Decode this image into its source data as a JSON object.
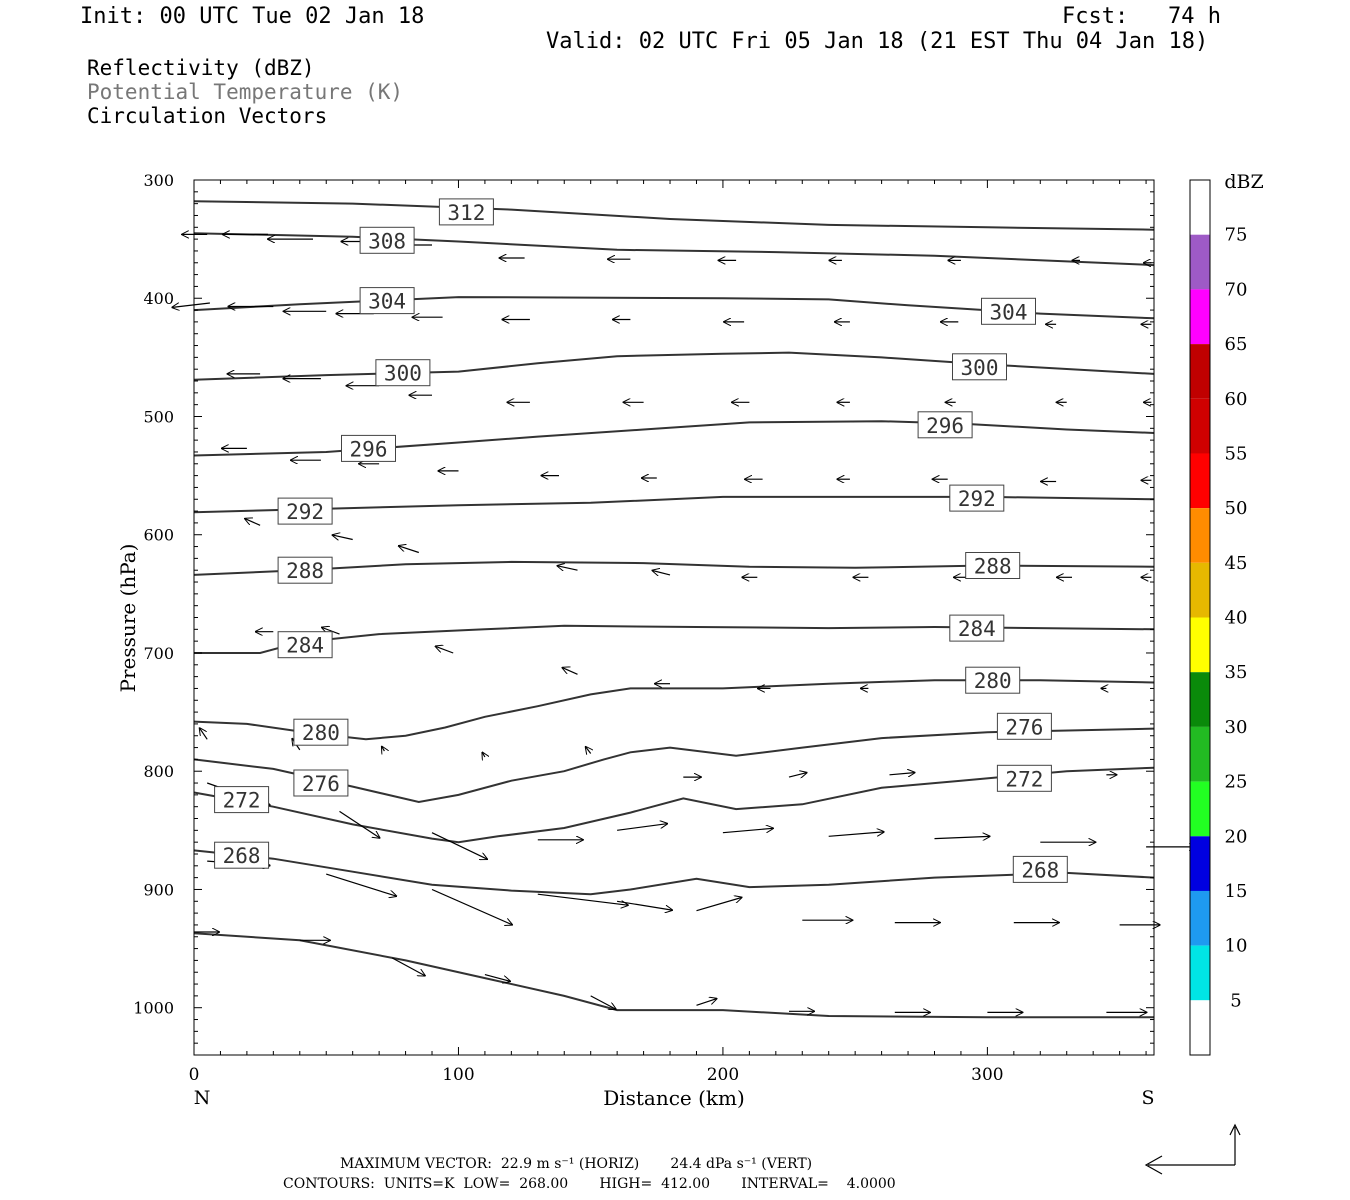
{
  "header": {
    "init": "Init: 00 UTC Tue 02 Jan 18",
    "fcst": "Fcst:   74 h",
    "valid": "Valid: 02 UTC Fri 05 Jan 18 (21 EST Thu 04 Jan 18)"
  },
  "legend_text": {
    "line1": "Reflectivity (dBZ)",
    "line2": "Potential Temperature (K)",
    "line3": "Circulation Vectors"
  },
  "footer": {
    "line1": "MAXIMUM VECTOR:  22.9 m s⁻¹ (HORIZ)       24.4 dPa s⁻¹ (VERT)",
    "line2": "CONTOURS:  UNITS=K  LOW=  268.00       HIGH=  412.00       INTERVAL=    4.0000"
  },
  "chart_data": {
    "type": "line",
    "xlabel": "Distance (km)",
    "ylabel": "Pressure (hPa)",
    "xlim": [
      0,
      363
    ],
    "ylim": [
      300,
      1040
    ],
    "y_inverted": true,
    "x_ticks": [
      0,
      100,
      200,
      300
    ],
    "y_ticks": [
      300,
      400,
      500,
      600,
      700,
      800,
      900,
      1000
    ],
    "x_end_labels": {
      "left": "N",
      "right": "S"
    },
    "line_color": "#333333",
    "series": [
      {
        "name": "312",
        "label_at": [
          103,
          327
        ],
        "points": [
          [
            0,
            318
          ],
          [
            60,
            320
          ],
          [
            120,
            325
          ],
          [
            180,
            333
          ],
          [
            240,
            338
          ],
          [
            300,
            340
          ],
          [
            363,
            342
          ]
        ]
      },
      {
        "name": "308",
        "label_at": [
          73,
          351
        ],
        "points": [
          [
            0,
            345
          ],
          [
            60,
            348
          ],
          [
            100,
            352
          ],
          [
            160,
            359
          ],
          [
            220,
            361
          ],
          [
            280,
            364
          ],
          [
            363,
            372
          ]
        ]
      },
      {
        "name": "304",
        "label_at": [
          73,
          402
        ],
        "points": [
          [
            0,
            410
          ],
          [
            40,
            405
          ],
          [
            100,
            399
          ],
          [
            200,
            400
          ],
          [
            240,
            401
          ],
          [
            270,
            406
          ],
          [
            320,
            413
          ],
          [
            363,
            417
          ]
        ]
      },
      {
        "name": "304",
        "label_at": [
          308,
          411
        ],
        "points": []
      },
      {
        "name": "300",
        "label_at": [
          79,
          463
        ],
        "points": [
          [
            0,
            469
          ],
          [
            50,
            465
          ],
          [
            100,
            462
          ],
          [
            130,
            455
          ],
          [
            160,
            449
          ],
          [
            200,
            447
          ],
          [
            225,
            446
          ],
          [
            260,
            450
          ],
          [
            300,
            456
          ],
          [
            363,
            464
          ]
        ]
      },
      {
        "name": "300",
        "label_at": [
          297,
          458
        ],
        "points": []
      },
      {
        "name": "296",
        "label_at": [
          66,
          527
        ],
        "points": [
          [
            0,
            533
          ],
          [
            50,
            530
          ],
          [
            100,
            522
          ],
          [
            130,
            517
          ],
          [
            170,
            511
          ],
          [
            210,
            505
          ],
          [
            260,
            504
          ],
          [
            290,
            506
          ],
          [
            330,
            511
          ],
          [
            363,
            514
          ]
        ]
      },
      {
        "name": "296",
        "label_at": [
          284,
          507
        ],
        "points": []
      },
      {
        "name": "292",
        "label_at": [
          42,
          580
        ],
        "points": [
          [
            0,
            581
          ],
          [
            50,
            578
          ],
          [
            100,
            575
          ],
          [
            150,
            573
          ],
          [
            200,
            568
          ],
          [
            250,
            568
          ],
          [
            300,
            568
          ],
          [
            363,
            570
          ]
        ]
      },
      {
        "name": "292",
        "label_at": [
          296,
          569
        ],
        "points": []
      },
      {
        "name": "288",
        "label_at": [
          42,
          630
        ],
        "points": [
          [
            0,
            634
          ],
          [
            40,
            630
          ],
          [
            80,
            625
          ],
          [
            120,
            623
          ],
          [
            170,
            624
          ],
          [
            210,
            627
          ],
          [
            250,
            628
          ],
          [
            300,
            626
          ],
          [
            363,
            627
          ]
        ]
      },
      {
        "name": "288",
        "label_at": [
          302,
          626
        ],
        "points": []
      },
      {
        "name": "284",
        "label_at": [
          42,
          693
        ],
        "points": [
          [
            0,
            700
          ],
          [
            25,
            700
          ],
          [
            40,
            691
          ],
          [
            70,
            684
          ],
          [
            110,
            680
          ],
          [
            140,
            677
          ],
          [
            190,
            678
          ],
          [
            240,
            679
          ],
          [
            280,
            678
          ],
          [
            363,
            680
          ]
        ]
      },
      {
        "name": "284",
        "label_at": [
          296,
          679
        ],
        "points": []
      },
      {
        "name": "280",
        "label_at": [
          302,
          723
        ],
        "points": [
          [
            0,
            758
          ],
          [
            20,
            760
          ],
          [
            45,
            768
          ],
          [
            65,
            773
          ],
          [
            80,
            770
          ],
          [
            95,
            763
          ],
          [
            110,
            754
          ],
          [
            130,
            745
          ],
          [
            150,
            735
          ],
          [
            165,
            730
          ],
          [
            200,
            730
          ],
          [
            240,
            726
          ],
          [
            280,
            723
          ],
          [
            320,
            723
          ],
          [
            363,
            725
          ]
        ]
      },
      {
        "name": "280",
        "label_at": [
          48,
          767
        ],
        "points": []
      },
      {
        "name": "276",
        "label_at": [
          314,
          762
        ],
        "points": [
          [
            0,
            790
          ],
          [
            30,
            798
          ],
          [
            60,
            813
          ],
          [
            85,
            826
          ],
          [
            100,
            820
          ],
          [
            120,
            808
          ],
          [
            140,
            800
          ],
          [
            155,
            790
          ],
          [
            165,
            784
          ],
          [
            180,
            780
          ],
          [
            205,
            787
          ],
          [
            230,
            780
          ],
          [
            260,
            772
          ],
          [
            300,
            767
          ],
          [
            363,
            764
          ]
        ]
      },
      {
        "name": "276",
        "label_at": [
          48,
          810
        ],
        "points": []
      },
      {
        "name": "272",
        "label_at": [
          18,
          824
        ],
        "points": [
          [
            0,
            818
          ],
          [
            30,
            830
          ],
          [
            60,
            845
          ],
          [
            90,
            857
          ],
          [
            100,
            860
          ],
          [
            115,
            855
          ],
          [
            140,
            848
          ],
          [
            165,
            835
          ],
          [
            185,
            823
          ],
          [
            205,
            832
          ],
          [
            230,
            828
          ],
          [
            260,
            814
          ],
          [
            290,
            808
          ],
          [
            330,
            800
          ],
          [
            363,
            797
          ]
        ]
      },
      {
        "name": "272",
        "label_at": [
          314,
          806
        ],
        "points": []
      },
      {
        "name": "268",
        "label_at": [
          18,
          871
        ],
        "points": [
          [
            0,
            867
          ],
          [
            30,
            874
          ],
          [
            60,
            885
          ],
          [
            90,
            896
          ],
          [
            120,
            901
          ],
          [
            150,
            904
          ],
          [
            165,
            900
          ],
          [
            190,
            891
          ],
          [
            210,
            898
          ],
          [
            240,
            896
          ],
          [
            280,
            890
          ],
          [
            330,
            886
          ],
          [
            363,
            890
          ]
        ]
      },
      {
        "name": "268",
        "label_at": [
          320,
          883
        ],
        "points": []
      },
      {
        "name": "",
        "label_at": null,
        "points": [
          [
            0,
            937
          ],
          [
            40,
            943
          ],
          [
            80,
            960
          ],
          [
            110,
            975
          ],
          [
            140,
            990
          ],
          [
            160,
            1002
          ],
          [
            200,
            1002
          ],
          [
            240,
            1007
          ],
          [
            300,
            1008
          ],
          [
            363,
            1008
          ]
        ]
      }
    ],
    "vectors": [
      [
        5,
        346,
        -10,
        0
      ],
      [
        28,
        346,
        -18,
        0
      ],
      [
        45,
        350,
        -18,
        0
      ],
      [
        68,
        352,
        -13,
        0
      ],
      [
        90,
        355,
        -12,
        0
      ],
      [
        125,
        366,
        -10,
        0
      ],
      [
        165,
        367,
        -9,
        0
      ],
      [
        205,
        368,
        -7,
        0
      ],
      [
        245,
        368,
        -5,
        0
      ],
      [
        290,
        368,
        -5,
        0
      ],
      [
        335,
        368,
        -3,
        0
      ],
      [
        362,
        370,
        -3,
        0
      ],
      [
        6,
        404,
        -15,
        2
      ],
      [
        30,
        407,
        -18,
        0
      ],
      [
        50,
        411,
        -17,
        0
      ],
      [
        68,
        413,
        -15,
        0
      ],
      [
        94,
        416,
        -12,
        0
      ],
      [
        127,
        418,
        -11,
        0
      ],
      [
        165,
        418,
        -7,
        0
      ],
      [
        208,
        420,
        -8,
        0
      ],
      [
        248,
        420,
        -6,
        0
      ],
      [
        289,
        420,
        -7,
        0
      ],
      [
        326,
        422,
        -4,
        0
      ],
      [
        362,
        422,
        -4,
        0
      ],
      [
        25,
        464,
        -13,
        0
      ],
      [
        48,
        468,
        -15,
        0
      ],
      [
        70,
        474,
        -13,
        0
      ],
      [
        90,
        482,
        -9,
        0
      ],
      [
        127,
        488,
        -9,
        0
      ],
      [
        170,
        488,
        -8,
        0
      ],
      [
        210,
        488,
        -7,
        0
      ],
      [
        248,
        488,
        -5,
        0
      ],
      [
        288,
        488,
        -4,
        0
      ],
      [
        330,
        488,
        -4,
        0
      ],
      [
        362,
        488,
        -3,
        0
      ],
      [
        20,
        527,
        -10,
        0
      ],
      [
        48,
        537,
        -12,
        0
      ],
      [
        70,
        540,
        -8,
        0
      ],
      [
        100,
        546,
        -8,
        0
      ],
      [
        138,
        550,
        -7,
        0
      ],
      [
        175,
        552,
        -6,
        0
      ],
      [
        215,
        553,
        -7,
        0
      ],
      [
        248,
        553,
        -5,
        0
      ],
      [
        285,
        553,
        -6,
        0
      ],
      [
        326,
        555,
        -6,
        0
      ],
      [
        362,
        554,
        -4,
        0
      ],
      [
        25,
        592,
        -6,
        -3
      ],
      [
        60,
        604,
        -8,
        -2
      ],
      [
        85,
        615,
        -8,
        -3
      ],
      [
        145,
        630,
        -8,
        -2
      ],
      [
        180,
        634,
        -7,
        -2
      ],
      [
        213,
        636,
        -6,
        0
      ],
      [
        255,
        636,
        -6,
        0
      ],
      [
        293,
        636,
        -6,
        0
      ],
      [
        332,
        636,
        -6,
        0
      ],
      [
        362,
        636,
        -4,
        0
      ],
      [
        30,
        682,
        -7,
        0
      ],
      [
        55,
        684,
        -7,
        -3
      ],
      [
        98,
        700,
        -7,
        -3
      ],
      [
        145,
        718,
        -6,
        -3
      ],
      [
        180,
        726,
        -6,
        0
      ],
      [
        218,
        730,
        -5,
        0
      ],
      [
        255,
        730,
        -3,
        0
      ],
      [
        300,
        730,
        -3,
        0
      ],
      [
        345,
        730,
        -2,
        0
      ],
      [
        5,
        773,
        -3,
        -5
      ],
      [
        40,
        782,
        -3,
        -5
      ],
      [
        72,
        783,
        -1,
        -2
      ],
      [
        110,
        788,
        -1,
        -2
      ],
      [
        150,
        785,
        -2,
        -3
      ],
      [
        185,
        805,
        7,
        0
      ],
      [
        225,
        805,
        7,
        -2
      ],
      [
        263,
        803,
        10,
        -1
      ],
      [
        305,
        805,
        8,
        0
      ],
      [
        345,
        803,
        4,
        0
      ],
      [
        5,
        810,
        25,
        10
      ],
      [
        55,
        834,
        16,
        12
      ],
      [
        90,
        852,
        22,
        12
      ],
      [
        130,
        858,
        18,
        0
      ],
      [
        160,
        850,
        20,
        -3
      ],
      [
        200,
        852,
        20,
        -2
      ],
      [
        240,
        855,
        22,
        -2
      ],
      [
        280,
        857,
        22,
        -1
      ],
      [
        320,
        860,
        22,
        0
      ],
      [
        360,
        864,
        20,
        0
      ],
      [
        5,
        876,
        25,
        2
      ],
      [
        50,
        887,
        28,
        10
      ],
      [
        90,
        900,
        32,
        16
      ],
      [
        130,
        904,
        36,
        5
      ],
      [
        160,
        910,
        22,
        4
      ],
      [
        190,
        918,
        18,
        -6
      ],
      [
        230,
        926,
        20,
        0
      ],
      [
        265,
        928,
        18,
        0
      ],
      [
        310,
        928,
        18,
        0
      ],
      [
        350,
        930,
        16,
        0
      ],
      [
        0,
        936,
        10,
        0
      ],
      [
        40,
        943,
        12,
        0
      ],
      [
        75,
        958,
        13,
        8
      ],
      [
        110,
        972,
        10,
        3
      ],
      [
        150,
        990,
        10,
        6
      ],
      [
        190,
        998,
        8,
        -3
      ],
      [
        225,
        1003,
        10,
        0
      ],
      [
        265,
        1004,
        14,
        0
      ],
      [
        300,
        1004,
        14,
        0
      ],
      [
        345,
        1004,
        16,
        0
      ]
    ],
    "colorbar": {
      "title": "dBZ",
      "levels": [
        "75",
        "70",
        "65",
        "60",
        "55",
        "50",
        "45",
        "40",
        "35",
        "30",
        "25",
        "20",
        "15",
        "10",
        "5"
      ],
      "colors": [
        "#ffffff",
        "#9e5ac6",
        "#ff00ff",
        "#c00000",
        "#d00000",
        "#ff0000",
        "#ff8c00",
        "#e6b800",
        "#ffff00",
        "#0a8a0a",
        "#22bb22",
        "#22ff22",
        "#0000e0",
        "#1e9af0",
        "#00e5e5",
        "#ffffff"
      ]
    }
  }
}
